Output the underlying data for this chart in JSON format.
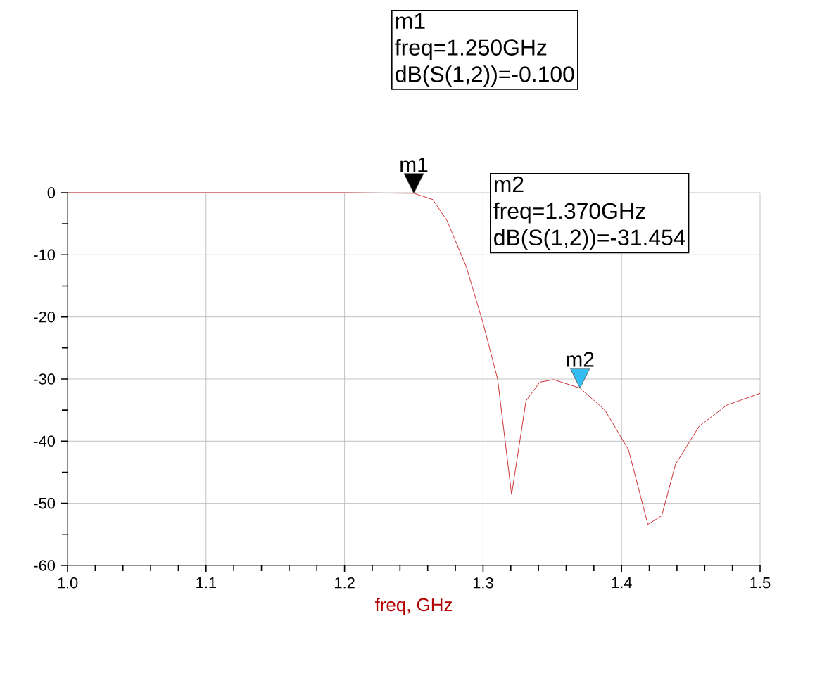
{
  "chart_data": {
    "type": "line",
    "xlabel": "freq, GHz",
    "x": [
      1.0,
      1.1,
      1.2,
      1.25,
      1.2637,
      1.274,
      1.288,
      1.3,
      1.3105,
      1.3206,
      1.331,
      1.341,
      1.351,
      1.37,
      1.388,
      1.405,
      1.419,
      1.429,
      1.439,
      1.456,
      1.476,
      1.5
    ],
    "series": [
      {
        "color": "#c00000",
        "values": [
          0,
          0,
          0,
          -0.1,
          -1.1,
          -4.5,
          -12,
          -21,
          -30,
          -48.6,
          -33.5,
          -30.5,
          -30.1,
          -31.454,
          -35,
          -41.4,
          -53.4,
          -52,
          -43.7,
          -37.6,
          -34.2,
          -32.3
        ]
      }
    ],
    "xlim": [
      1.0,
      1.5
    ],
    "ylim": [
      -60,
      0
    ],
    "xticks": [
      {
        "value": 1.0,
        "label": "1.0"
      },
      {
        "value": 1.1,
        "label": "1.1"
      },
      {
        "value": 1.2,
        "label": "1.2"
      },
      {
        "value": 1.3,
        "label": "1.3"
      },
      {
        "value": 1.4,
        "label": "1.4"
      },
      {
        "value": 1.5,
        "label": "1.5"
      }
    ],
    "yticks": [
      -60,
      -50,
      -40,
      -30,
      -20,
      -10,
      0
    ],
    "grid": true,
    "marker": "none",
    "line_style": "solid",
    "annotations": [
      {
        "text": "m1",
        "x": 1.25,
        "y": -0.1
      },
      "m1",
      "freq=1.250GHz",
      "dB(S(1,2))=-0.100",
      {
        "text": "m2",
        "x": 1.37,
        "y": -31.454
      },
      "m2",
      "freq=1.370GHz",
      "dB(S(1,2))=-31.454"
    ]
  }
}
